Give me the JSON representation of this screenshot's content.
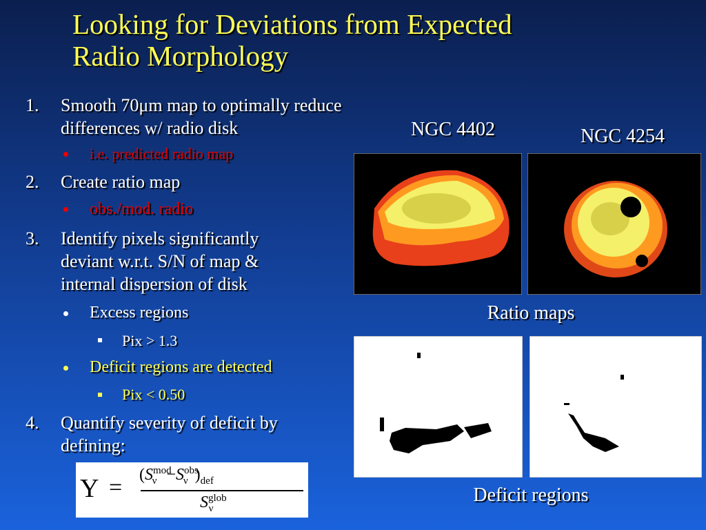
{
  "title": [
    "Looking for Deviations from Expected",
    "Radio Morphology"
  ],
  "items": [
    {
      "number": "1.",
      "text": "Smooth 70μm map to optimally reduce differences w/ radio disk",
      "subs": [
        {
          "text": "i.e. predicted radio map"
        }
      ]
    },
    {
      "number": "2.",
      "text": "Create ratio map",
      "subs": [
        {
          "text": "obs./mod. radio"
        }
      ]
    },
    {
      "number": "3.",
      "text": "Identify pixels significantly deviant w.r.t. S/N of map & internal dispersion of disk",
      "subs": [
        {
          "text": "Excess regions",
          "subsub": "Pix > 1.3"
        },
        {
          "text": "Deficit regions are detected",
          "subsub": "Pix < 0.50"
        }
      ]
    },
    {
      "number": "4.",
      "text": "Quantify severity of deficit by defining:"
    }
  ],
  "equation": {
    "lhs": "Υ",
    "eq": "=",
    "open": "(",
    "s1": "S",
    "sup1": "mod",
    "sub1": "ν",
    "minus": "−",
    "s2": "S",
    "sup2": "obs",
    "sub2": "ν",
    "close": ")",
    "def": "def",
    "s3": "S",
    "sup3": "glob",
    "sub3": "ν"
  },
  "figures": {
    "label1": "NGC 4402",
    "label2": "NGC 4254",
    "ratio_caption": "Ratio maps",
    "deficit_caption": "Deficit regions"
  }
}
